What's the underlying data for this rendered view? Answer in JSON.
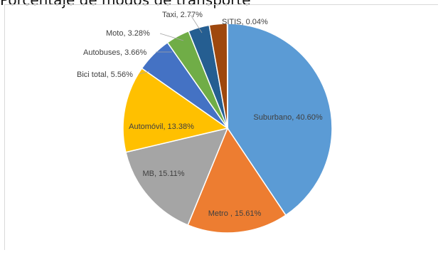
{
  "chart_data": {
    "type": "pie",
    "title": "Porcentaje de modos de transporte",
    "slices": [
      {
        "label": "Suburbano",
        "value": 40.6,
        "display": "Suburbano, 40.60%",
        "color": "#5b9bd5"
      },
      {
        "label": "Metro ",
        "value": 15.61,
        "display": "Metro , 15.61%",
        "color": "#ed7d31"
      },
      {
        "label": "MB",
        "value": 15.11,
        "display": "MB, 15.11%",
        "color": "#a5a5a5"
      },
      {
        "label": "Automóvil",
        "value": 13.38,
        "display": "Automóvil, 13.38%",
        "color": "#ffc000"
      },
      {
        "label": "Bici total",
        "value": 5.56,
        "display": "Bici total, 5.56%",
        "color": "#4472c4"
      },
      {
        "label": "Autobuses",
        "value": 3.66,
        "display": "Autobuses, 3.66%",
        "color": "#70ad47"
      },
      {
        "label": "Moto",
        "value": 3.28,
        "display": "Moto, 3.28%",
        "color": "#255e91"
      },
      {
        "label": "Taxi",
        "value": 2.77,
        "display": "Taxi, 2.77%",
        "color": "#9e480e"
      },
      {
        "label": "SITIS",
        "value": 0.04,
        "display": "SITIS, 0.04%",
        "color": "#636363"
      }
    ],
    "legend": "none",
    "label_position": "inside/outside with leader lines"
  }
}
